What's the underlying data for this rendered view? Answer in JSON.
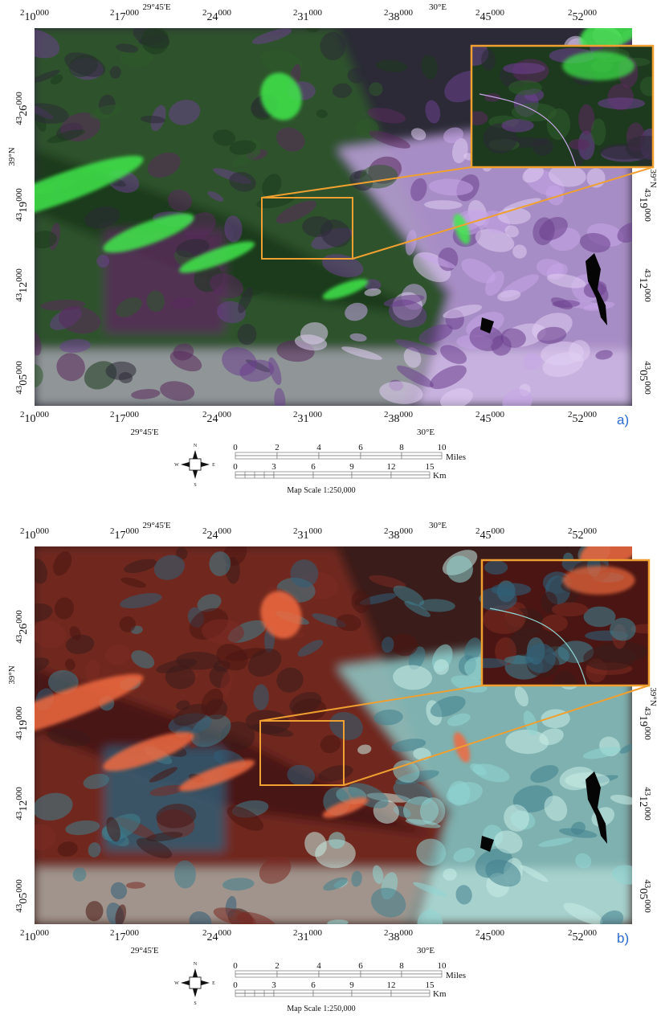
{
  "panels": [
    {
      "label": "a)",
      "x_labels_top": [
        {
          "pre": "2",
          "main": "10",
          "sup": "000"
        },
        {
          "pre": "2",
          "main": "17",
          "sup": "000"
        },
        {
          "pre": "2",
          "main": "24",
          "sup": "000"
        },
        {
          "pre": "2",
          "main": "31",
          "sup": "000"
        },
        {
          "pre": "2",
          "main": "38",
          "sup": "000"
        },
        {
          "pre": "2",
          "main": "45",
          "sup": "000"
        },
        {
          "pre": "2",
          "main": "52",
          "sup": "000"
        }
      ],
      "lon_top": [
        "29°45'E",
        "30°E"
      ],
      "y_labels_left": [
        {
          "pre": "43",
          "main": "26",
          "sup": "000"
        },
        {
          "pre": "43",
          "main": "19",
          "sup": "000"
        },
        {
          "pre": "43",
          "main": "12",
          "sup": "000"
        },
        {
          "pre": "43",
          "main": "05",
          "sup": "000"
        }
      ],
      "lat_left": "39°N",
      "y_labels_right": [
        {
          "pre": "43",
          "main": "19",
          "sup": "000"
        },
        {
          "pre": "43",
          "main": "12",
          "sup": "000"
        },
        {
          "pre": "43",
          "main": "05",
          "sup": "000"
        }
      ],
      "lat_right": "39°N",
      "x_labels_bottom": [
        {
          "pre": "2",
          "main": "10",
          "sup": "000"
        },
        {
          "pre": "2",
          "main": "17",
          "sup": "000"
        },
        {
          "pre": "2",
          "main": "24",
          "sup": "000"
        },
        {
          "pre": "2",
          "main": "31",
          "sup": "000"
        },
        {
          "pre": "2",
          "main": "38",
          "sup": "000"
        },
        {
          "pre": "2",
          "main": "45",
          "sup": "000"
        },
        {
          "pre": "2",
          "main": "52",
          "sup": "000"
        }
      ],
      "lon_bottom": [
        "29°45'E",
        "30°E"
      ],
      "north_arrow": {
        "n": "N",
        "s": "S",
        "e": "E",
        "w": "W"
      },
      "scale": {
        "miles": [
          "0",
          "2",
          "4",
          "6",
          "8",
          "10"
        ],
        "miles_unit": "Miles",
        "km": [
          "0",
          "3",
          "6",
          "9",
          "12",
          "15"
        ],
        "km_unit": "Km",
        "caption": "Map Scale 1:250,000"
      }
    },
    {
      "label": "b)",
      "x_labels_top": [
        {
          "pre": "2",
          "main": "10",
          "sup": "000"
        },
        {
          "pre": "2",
          "main": "17",
          "sup": "000"
        },
        {
          "pre": "2",
          "main": "24",
          "sup": "000"
        },
        {
          "pre": "2",
          "main": "31",
          "sup": "000"
        },
        {
          "pre": "2",
          "main": "38",
          "sup": "000"
        },
        {
          "pre": "2",
          "main": "45",
          "sup": "000"
        },
        {
          "pre": "2",
          "main": "52",
          "sup": "000"
        }
      ],
      "lon_top": [
        "29°45'E",
        "30°E"
      ],
      "y_labels_left": [
        {
          "pre": "43",
          "main": "26",
          "sup": "000"
        },
        {
          "pre": "43",
          "main": "19",
          "sup": "000"
        },
        {
          "pre": "43",
          "main": "12",
          "sup": "000"
        },
        {
          "pre": "43",
          "main": "05",
          "sup": "000"
        }
      ],
      "lat_left": "39°N",
      "y_labels_right": [
        {
          "pre": "43",
          "main": "19",
          "sup": "000"
        },
        {
          "pre": "43",
          "main": "12",
          "sup": "000"
        },
        {
          "pre": "43",
          "main": "05",
          "sup": "000"
        }
      ],
      "lat_right": "39°N",
      "x_labels_bottom": [
        {
          "pre": "2",
          "main": "10",
          "sup": "000"
        },
        {
          "pre": "2",
          "main": "17",
          "sup": "000"
        },
        {
          "pre": "2",
          "main": "24",
          "sup": "000"
        },
        {
          "pre": "2",
          "main": "31",
          "sup": "000"
        },
        {
          "pre": "2",
          "main": "38",
          "sup": "000"
        },
        {
          "pre": "2",
          "main": "45",
          "sup": "000"
        },
        {
          "pre": "2",
          "main": "52",
          "sup": "000"
        }
      ],
      "lon_bottom": [
        "29°45'E",
        "30°E"
      ],
      "north_arrow": {
        "n": "N",
        "s": "S",
        "e": "E",
        "w": "W"
      },
      "scale": {
        "miles": [
          "0",
          "2",
          "4",
          "6",
          "8",
          "10"
        ],
        "miles_unit": "Miles",
        "km": [
          "0",
          "3",
          "6",
          "9",
          "12",
          "15"
        ],
        "km_unit": "Km",
        "caption": "Map Scale 1:250,000"
      }
    }
  ]
}
